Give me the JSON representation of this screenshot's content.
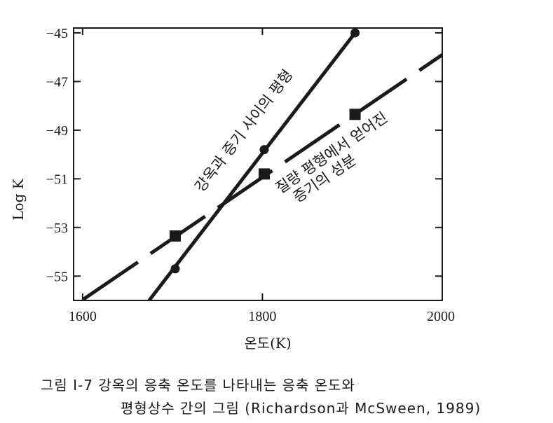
{
  "chart_data": {
    "type": "line",
    "xlabel": "온도(K)",
    "ylabel": "Log K",
    "xlim": [
      1590,
      2000
    ],
    "ylim": [
      -56,
      -44.8
    ],
    "x_ticks": [
      1600,
      1800,
      2000
    ],
    "x_tick_labels": [
      "1600",
      "1800",
      "2000"
    ],
    "y_ticks": [
      -45,
      -47,
      -49,
      -51,
      -53,
      -55
    ],
    "y_tick_labels": [
      "−45",
      "−47",
      "−49",
      "−51",
      "−53",
      "−55"
    ],
    "grid": false,
    "series": [
      {
        "name": "강옥과 증기 사이의 평형",
        "style": "solid",
        "color": "#1a1a1a",
        "marker": "circle",
        "line": [
          [
            1674,
            -56
          ],
          [
            1903,
            -45
          ]
        ],
        "points": [
          [
            1703,
            -54.7
          ],
          [
            1802,
            -49.8
          ],
          [
            1903,
            -45
          ]
        ]
      },
      {
        "name": "질량 평형에서 얻어진 증기의 성분",
        "style": "dashed",
        "color": "#1a1a1a",
        "marker": "square",
        "line": [
          [
            1601,
            -55.95
          ],
          [
            2000,
            -45.9
          ]
        ],
        "points": [
          [
            1703,
            -53.35
          ],
          [
            1802,
            -50.8
          ],
          [
            1903,
            -48.35
          ]
        ]
      }
    ],
    "annotations": [
      {
        "text": "강옥과 증기 사이의 평형",
        "series": 0
      },
      {
        "lines": [
          "질량 평형에서 얻어진",
          "증기의 성분"
        ],
        "series": 1
      }
    ]
  },
  "caption": {
    "line1": "그림 Ⅰ-7  강옥의  응축  온도를  나타내는  응축  온도와",
    "line2": "평형상수  간의  그림 (Richardson과 McSween, 1989)"
  }
}
